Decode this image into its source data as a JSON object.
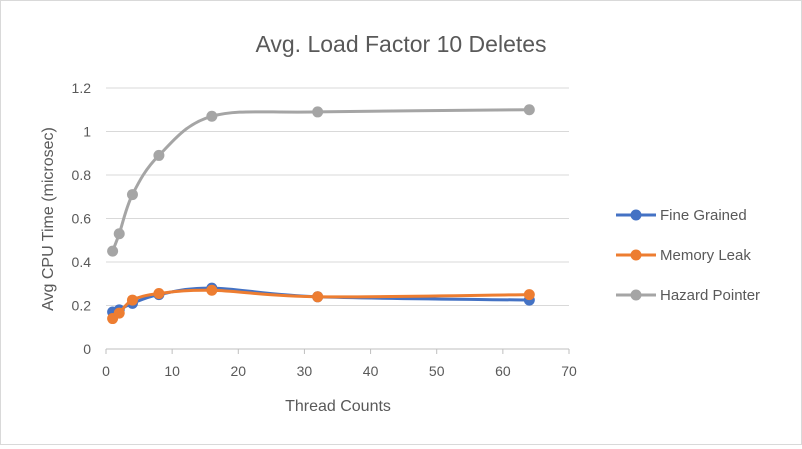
{
  "chart_data": {
    "type": "line",
    "title": "Avg. Load Factor 10 Deletes",
    "xlabel": "Thread Counts",
    "ylabel": "Avg CPU Time (microsec)",
    "xlim": [
      0,
      70
    ],
    "ylim": [
      0,
      1.2
    ],
    "x_ticks": [
      0,
      10,
      20,
      30,
      40,
      50,
      60,
      70
    ],
    "y_ticks": [
      0,
      0.2,
      0.4,
      0.6,
      0.8,
      1,
      1.2
    ],
    "grid": "horizontal",
    "legend_position": "right",
    "smooth": true,
    "x": [
      1,
      2,
      4,
      8,
      16,
      32,
      64
    ],
    "series": [
      {
        "name": "Fine Grained",
        "color": "#4472C4",
        "values": [
          0.17,
          0.18,
          0.21,
          0.25,
          0.28,
          0.24,
          0.225
        ]
      },
      {
        "name": "Memory Leak",
        "color": "#ED7D31",
        "values": [
          0.14,
          0.165,
          0.225,
          0.255,
          0.27,
          0.24,
          0.25
        ]
      },
      {
        "name": "Hazard Pointer",
        "color": "#A5A5A5",
        "values": [
          0.45,
          0.53,
          0.71,
          0.89,
          1.07,
          1.09,
          1.1
        ]
      }
    ],
    "gridline_color": "#d9d9d9",
    "axis_color": "#bfbfbf",
    "text_color": "#595959"
  }
}
